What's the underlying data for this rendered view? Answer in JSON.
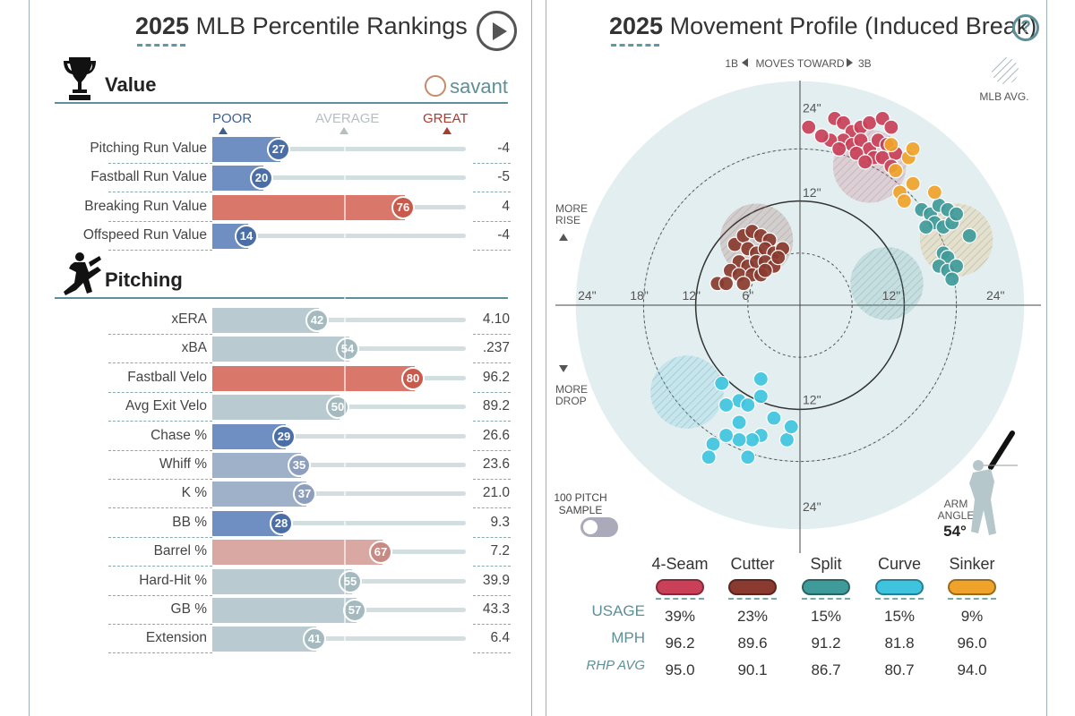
{
  "left": {
    "title_year": "2025",
    "title_rest": "MLB Percentile Rankings",
    "value_section": "Value",
    "pitching_section": "Pitching",
    "savant": "savant",
    "scale": {
      "poor": "POOR",
      "average": "AVERAGE",
      "great": "GREAT"
    }
  },
  "right": {
    "title_year": "2025",
    "title_rest": "Movement Profile (Induced Break)",
    "moves_toward": "MOVES TOWARD",
    "first_base": "1B",
    "third_base": "3B",
    "mlb_avg": "MLB AVG.",
    "more_rise_1": "MORE",
    "more_rise_2": "RISE",
    "more_drop_1": "MORE",
    "more_drop_2": "DROP",
    "sample_1": "100 PITCH",
    "sample_2": "SAMPLE",
    "arm_angle_1": "ARM",
    "arm_angle_2": "ANGLE",
    "arm_angle_val": "54°",
    "usage_label": "USAGE",
    "mph_label": "MPH",
    "rhp_label": "RHP AVG"
  },
  "colors": {
    "red_bar": "#d9786a",
    "blue_bar": "#6f8fc2",
    "gray_bar": "#b9cbd0",
    "pink_bar": "#d9a8a2",
    "accent": "#5d8f98"
  },
  "chart_data": [
    {
      "type": "bar",
      "title": "2025 MLB Percentile Rankings",
      "sections": [
        {
          "name": "Value",
          "rows": [
            {
              "label": "Pitching Run Value",
              "percentile": 27,
              "value": "-4"
            },
            {
              "label": "Fastball Run Value",
              "percentile": 20,
              "value": "-5"
            },
            {
              "label": "Breaking Run Value",
              "percentile": 76,
              "value": "4"
            },
            {
              "label": "Offspeed Run Value",
              "percentile": 14,
              "value": "-4"
            }
          ]
        },
        {
          "name": "Pitching",
          "rows": [
            {
              "label": "xERA",
              "percentile": 42,
              "value": "4.10"
            },
            {
              "label": "xBA",
              "percentile": 54,
              "value": ".237"
            },
            {
              "label": "Fastball Velo",
              "percentile": 80,
              "value": "96.2"
            },
            {
              "label": "Avg Exit Velo",
              "percentile": 50,
              "value": "89.2"
            },
            {
              "label": "Chase %",
              "percentile": 29,
              "value": "26.6"
            },
            {
              "label": "Whiff %",
              "percentile": 35,
              "value": "23.6"
            },
            {
              "label": "K %",
              "percentile": 37,
              "value": "21.0"
            },
            {
              "label": "BB %",
              "percentile": 28,
              "value": "9.3"
            },
            {
              "label": "Barrel %",
              "percentile": 67,
              "value": "7.2"
            },
            {
              "label": "Hard-Hit %",
              "percentile": 55,
              "value": "39.9"
            },
            {
              "label": "GB %",
              "percentile": 57,
              "value": "43.3"
            },
            {
              "label": "Extension",
              "percentile": 41,
              "value": "6.4"
            }
          ]
        }
      ],
      "xlim": [
        0,
        100
      ]
    },
    {
      "type": "scatter",
      "title": "2025 Movement Profile (Induced Break)",
      "xlim": [
        -27,
        27
      ],
      "ylim": [
        -27,
        27
      ],
      "rings": [
        6,
        12,
        18,
        24
      ],
      "axis_labels": {
        "x_left": [
          "24\"",
          "18\"",
          "12\"",
          "6\""
        ],
        "x_right": [
          "12\"",
          "24\""
        ],
        "y_top": [
          "24\"",
          "12\""
        ],
        "y_bottom": [
          "12\"",
          "24\""
        ]
      },
      "series": [
        {
          "name": "4-Seam",
          "color": "#c94058",
          "usage": "39%",
          "mph": "96.2",
          "rhp_avg": "95.0",
          "avg": [
            8,
            16
          ],
          "points": [
            [
              1,
              20.5
            ],
            [
              4,
              21.5
            ],
            [
              5,
              21
            ],
            [
              6,
              20
            ],
            [
              7,
              20.5
            ],
            [
              8,
              21
            ],
            [
              9.5,
              21.5
            ],
            [
              10.5,
              20.5
            ],
            [
              5,
              19
            ],
            [
              6,
              18.5
            ],
            [
              7,
              19
            ],
            [
              8,
              18
            ],
            [
              9,
              19
            ],
            [
              10,
              18.5
            ],
            [
              3.5,
              19
            ],
            [
              6.5,
              17.5
            ],
            [
              8.5,
              17
            ],
            [
              9.5,
              17
            ],
            [
              11,
              17.5
            ],
            [
              7.5,
              16.5
            ],
            [
              10.5,
              16
            ],
            [
              4.5,
              18
            ],
            [
              2.5,
              19.5
            ]
          ]
        },
        {
          "name": "Cutter",
          "color": "#8a3a2e",
          "usage": "23%",
          "mph": "89.6",
          "rhp_avg": "90.1",
          "avg": [
            -5,
            7.5
          ],
          "points": [
            [
              -7.5,
              7
            ],
            [
              -6.5,
              8
            ],
            [
              -5.5,
              8.5
            ],
            [
              -4.5,
              8
            ],
            [
              -3.5,
              7.5
            ],
            [
              -6,
              6.5
            ],
            [
              -5,
              6
            ],
            [
              -4,
              6.5
            ],
            [
              -3,
              6
            ],
            [
              -2,
              6.5
            ],
            [
              -7,
              5
            ],
            [
              -6,
              4.5
            ],
            [
              -5,
              5
            ],
            [
              -4,
              5
            ],
            [
              -3,
              4.5
            ],
            [
              -2.5,
              5.5
            ],
            [
              -8,
              4
            ],
            [
              -7,
              3.5
            ],
            [
              -5.5,
              3.5
            ],
            [
              -4.5,
              3.5
            ],
            [
              -9.5,
              2.5
            ],
            [
              -8.5,
              2.5
            ],
            [
              -6.5,
              2.5
            ],
            [
              -4,
              4
            ]
          ]
        },
        {
          "name": "Split",
          "color": "#3f9a9a",
          "usage": "15%",
          "mph": "91.2",
          "rhp_avg": "86.7",
          "avg": [
            10,
            2.5
          ],
          "points": [
            [
              14,
              11
            ],
            [
              15,
              10.5
            ],
            [
              16,
              11.5
            ],
            [
              17,
              11
            ],
            [
              15.5,
              9.5
            ],
            [
              16.5,
              9
            ],
            [
              14.5,
              9
            ],
            [
              17.5,
              9.5
            ],
            [
              18,
              10.5
            ],
            [
              19.5,
              8
            ],
            [
              16.5,
              6
            ],
            [
              17,
              5.5
            ],
            [
              16,
              4.5
            ],
            [
              17,
              4
            ],
            [
              18,
              4.5
            ],
            [
              17.5,
              3
            ]
          ]
        },
        {
          "name": "Curve",
          "color": "#3fc4e0",
          "usage": "15%",
          "mph": "81.8",
          "rhp_avg": "80.7",
          "avg": [
            -13,
            -10
          ],
          "points": [
            [
              -9,
              -9
            ],
            [
              -4.5,
              -8.5
            ],
            [
              -4.5,
              -10.5
            ],
            [
              -7,
              -11
            ],
            [
              -6,
              -11.5
            ],
            [
              -8.5,
              -11.5
            ],
            [
              -7,
              -13.5
            ],
            [
              -3,
              -13
            ],
            [
              -4.5,
              -15
            ],
            [
              -5.5,
              -15.5
            ],
            [
              -7,
              -15.5
            ],
            [
              -8.5,
              -15
            ],
            [
              -1.5,
              -15.5
            ],
            [
              -1,
              -14
            ],
            [
              -10,
              -16
            ],
            [
              -10.5,
              -17.5
            ],
            [
              -6,
              -17.5
            ]
          ]
        },
        {
          "name": "Sinker",
          "color": "#f0a32a",
          "usage": "9%",
          "mph": "96.0",
          "rhp_avg": "94.0",
          "avg": [
            18,
            7.5
          ],
          "points": [
            [
              10.5,
              18.5
            ],
            [
              12.5,
              17
            ],
            [
              13,
              18
            ],
            [
              11,
              15.5
            ],
            [
              13,
              14
            ],
            [
              15.5,
              13
            ],
            [
              11.5,
              13
            ],
            [
              12,
              12
            ]
          ]
        }
      ]
    }
  ]
}
